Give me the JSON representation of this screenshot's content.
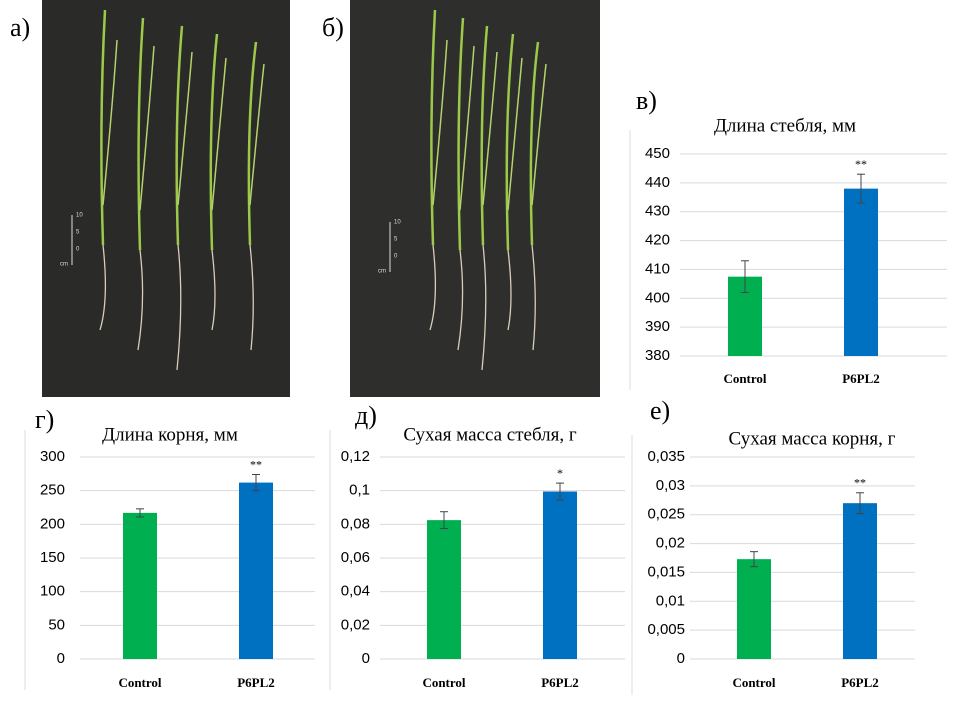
{
  "photos": [
    {
      "label": "а)",
      "scale_labels": [
        "10",
        "5",
        "0",
        "cm"
      ]
    },
    {
      "label": "б)",
      "scale_labels": [
        "10",
        "5",
        "0",
        "cm"
      ]
    }
  ],
  "chart_data": [
    {
      "type": "bar",
      "label": "в)",
      "title": "Длина стебля, мм",
      "categories": [
        "Control",
        "P6PL2"
      ],
      "values": [
        407.5,
        438
      ],
      "errors": [
        5.5,
        5
      ],
      "annotations": [
        null,
        "**"
      ],
      "colors": [
        "#00b050",
        "#0070c0"
      ],
      "ylim": [
        380,
        450
      ],
      "yticks": [
        380,
        390,
        400,
        410,
        420,
        430,
        440,
        450
      ],
      "grid": true
    },
    {
      "type": "bar",
      "label": "г)",
      "title": "Длина корня, мм",
      "categories": [
        "Control",
        "P6PL2"
      ],
      "values": [
        217,
        262
      ],
      "errors": [
        6,
        12
      ],
      "annotations": [
        null,
        "**"
      ],
      "colors": [
        "#00b050",
        "#0070c0"
      ],
      "ylim": [
        0,
        300
      ],
      "yticks": [
        0,
        50,
        100,
        150,
        200,
        250,
        300
      ],
      "grid": true
    },
    {
      "type": "bar",
      "label": "д)",
      "title": "Сухая масса стебля, г",
      "categories": [
        "Control",
        "P6PL2"
      ],
      "values": [
        0.0825,
        0.0995
      ],
      "errors": [
        0.005,
        0.005
      ],
      "annotations": [
        null,
        "*"
      ],
      "colors": [
        "#00b050",
        "#0070c0"
      ],
      "ylim": [
        0,
        0.12
      ],
      "yticks": [
        0,
        {
          "value": 0.02,
          "label": "0,02"
        },
        {
          "value": 0.04,
          "label": "0,04"
        },
        {
          "value": 0.06,
          "label": "0,06"
        },
        {
          "value": 0.08,
          "label": "0,08"
        },
        {
          "value": 0.1,
          "label": "0,1"
        },
        {
          "value": 0.12,
          "label": "0,12"
        }
      ],
      "grid": true
    },
    {
      "type": "bar",
      "label": "е)",
      "title": "Сухая масса корня, г",
      "categories": [
        "Control",
        "P6PL2"
      ],
      "values": [
        0.0173,
        0.027
      ],
      "errors": [
        0.0013,
        0.0018
      ],
      "annotations": [
        null,
        "**"
      ],
      "colors": [
        "#00b050",
        "#0070c0"
      ],
      "ylim": [
        0,
        0.035
      ],
      "yticks": [
        0,
        {
          "value": 0.005,
          "label": "0,005"
        },
        {
          "value": 0.01,
          "label": "0,01"
        },
        {
          "value": 0.015,
          "label": "0,015"
        },
        {
          "value": 0.02,
          "label": "0,02"
        },
        {
          "value": 0.025,
          "label": "0,025"
        },
        {
          "value": 0.03,
          "label": "0,03"
        },
        {
          "value": 0.035,
          "label": "0,035"
        }
      ],
      "grid": true
    }
  ]
}
